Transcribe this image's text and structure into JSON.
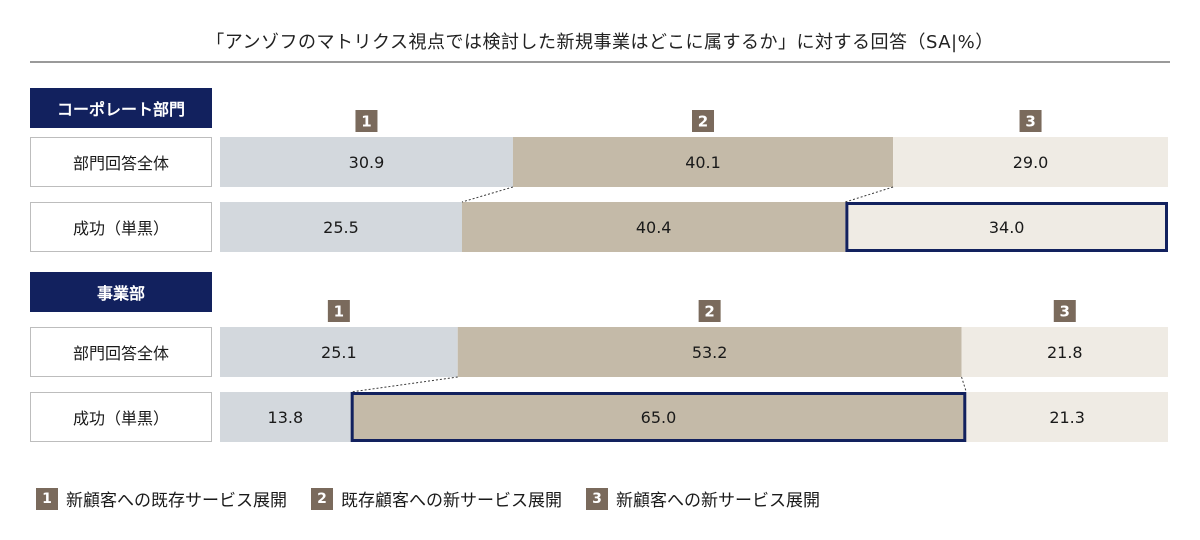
{
  "title": "「アンゾフのマトリクス視点では検討した新規事業はどこに属するか」に対する回答（SA|%）",
  "chart_data": {
    "type": "bar",
    "stacked": true,
    "orientation": "horizontal",
    "scale": [
      0,
      100
    ],
    "series_colors": [
      "#d3d8dd",
      "#c4baa8",
      "#efebe4"
    ],
    "highlight_color": "#12215e",
    "marker_color": "#7a6a5c",
    "groups": [
      {
        "label": "コーポレート部門",
        "rows": [
          {
            "label": "部門回答全体",
            "values": [
              30.9,
              40.1,
              29.0
            ],
            "highlight": null
          },
          {
            "label": "成功（単黒）",
            "values": [
              25.5,
              40.4,
              34.0
            ],
            "highlight": 2
          }
        ]
      },
      {
        "label": "事業部",
        "rows": [
          {
            "label": "部門回答全体",
            "values": [
              25.1,
              53.2,
              21.8
            ],
            "highlight": null
          },
          {
            "label": "成功（単黒）",
            "values": [
              13.8,
              65.0,
              21.3
            ],
            "highlight": 1
          }
        ]
      }
    ]
  },
  "legend": [
    {
      "num": "1",
      "label": "新顧客への既存サービス展開"
    },
    {
      "num": "2",
      "label": "既存顧客への新サービス展開"
    },
    {
      "num": "3",
      "label": "新顧客への新サービス展開"
    }
  ]
}
